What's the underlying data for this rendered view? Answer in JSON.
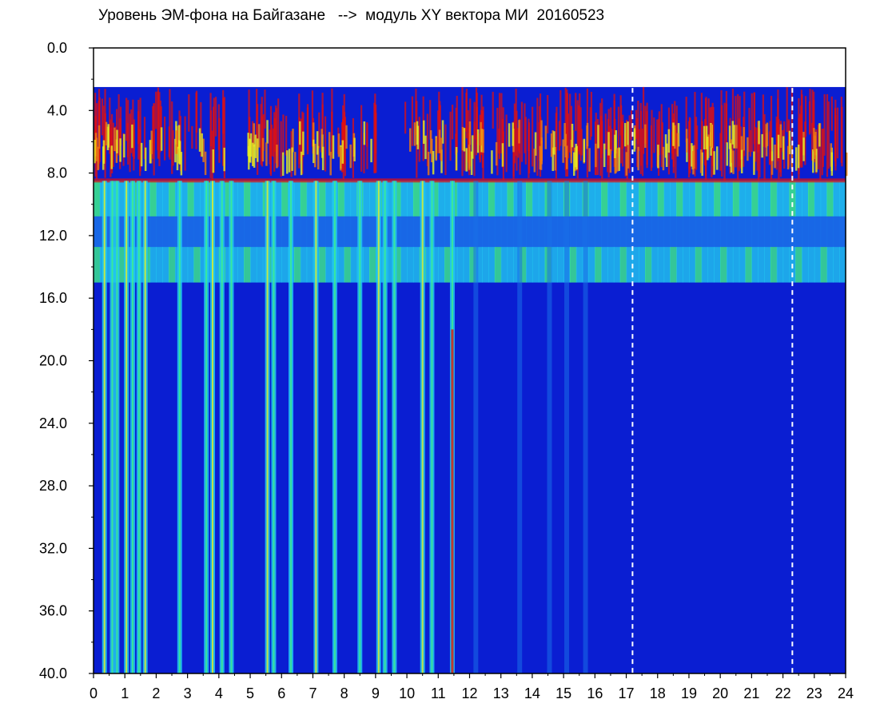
{
  "chart_data": {
    "type": "heatmap",
    "title": "Уровень ЭМ-фона на Байгазане   -->  модуль XY вектора МИ  20160523",
    "xlabel": "",
    "ylabel": "",
    "xlim": [
      0,
      24
    ],
    "ylim": [
      0,
      40
    ],
    "y_inverted": true,
    "x_ticks": [
      "0",
      "1",
      "2",
      "3",
      "4",
      "5",
      "6",
      "7",
      "8",
      "9",
      "10",
      "11",
      "12",
      "13",
      "14",
      "15",
      "16",
      "17",
      "18",
      "19",
      "20",
      "21",
      "22",
      "23",
      "24"
    ],
    "y_ticks": [
      "0.0",
      "4.0",
      "8.0",
      "12.0",
      "16.0",
      "20.0",
      "24.0",
      "28.0",
      "32.0",
      "36.0",
      "40.0"
    ],
    "grid": false,
    "colormap": [
      "#0a1ed2",
      "#1a6fe8",
      "#22c8f0",
      "#3ef08a",
      "#e8f020",
      "#f07a10",
      "#e01010"
    ],
    "background_color": "#0a1ed2",
    "bands": [
      {
        "name": "upper",
        "y_range": [
          2.5,
          8.5
        ],
        "level": "high"
      },
      {
        "name": "middle",
        "y_range": [
          8.5,
          15
        ],
        "level": "medium"
      },
      {
        "name": "lower",
        "y_range": [
          15,
          40
        ],
        "level": "low"
      }
    ],
    "vertical_streaks_hours": [
      0.35,
      0.6,
      0.75,
      1.05,
      1.25,
      1.45,
      1.65,
      2.75,
      3.6,
      3.8,
      4.1,
      4.4,
      5.55,
      5.75,
      6.3,
      7.1,
      7.7,
      8.5,
      9.1,
      9.3,
      9.6,
      10.5,
      10.8,
      11.45,
      12.2,
      13.6,
      14.55,
      15.1,
      15.7
    ],
    "white_dashed_lines_hours": [
      17.2,
      22.3
    ]
  }
}
